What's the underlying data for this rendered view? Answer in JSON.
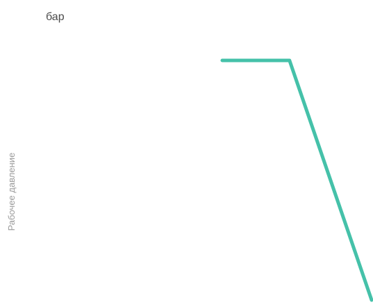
{
  "chart_data": {
    "type": "line",
    "title": "",
    "xlabel": "",
    "ylabel": "Рабочее давление",
    "unit_label": "бар",
    "grid": false,
    "legend": "none",
    "xlim": [
      0,
      100
    ],
    "ylim": [
      0,
      100
    ],
    "series": [
      {
        "color": "#45c1a9",
        "x": [
          0,
          45,
          100
        ],
        "y": [
          100,
          100,
          0
        ]
      }
    ]
  }
}
